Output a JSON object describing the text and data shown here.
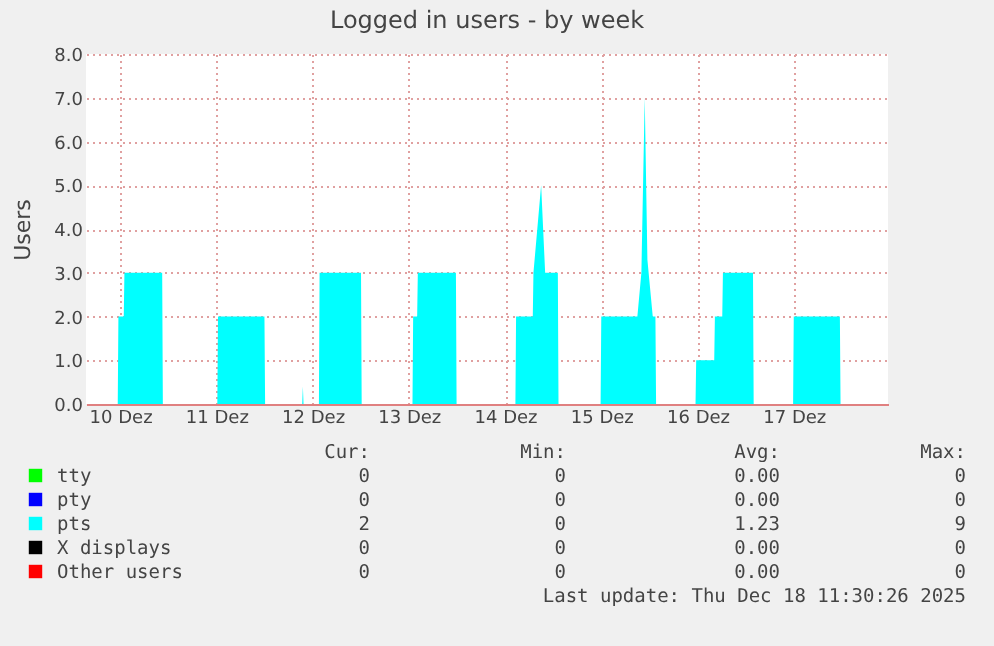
{
  "chart_data": {
    "type": "area",
    "title": "Logged in users - by week",
    "ylabel": "Users",
    "xlim": [
      "2025-12-10T03:30",
      "2025-12-18T11:30"
    ],
    "xticks": [
      {
        "value": "2025-12-10T12:00",
        "label": "10 Dez"
      },
      {
        "value": "2025-12-11T12:00",
        "label": "11 Dez"
      },
      {
        "value": "2025-12-12T12:00",
        "label": "12 Dez"
      },
      {
        "value": "2025-12-13T12:00",
        "label": "13 Dez"
      },
      {
        "value": "2025-12-14T12:00",
        "label": "14 Dez"
      },
      {
        "value": "2025-12-15T12:00",
        "label": "15 Dez"
      },
      {
        "value": "2025-12-16T12:00",
        "label": "16 Dez"
      },
      {
        "value": "2025-12-17T12:00",
        "label": "17 Dez"
      }
    ],
    "ylim": [
      0,
      8
    ],
    "yticks": [
      {
        "value": 0,
        "label": "0.0"
      },
      {
        "value": 1,
        "label": "1.0"
      },
      {
        "value": 2,
        "label": "2.0"
      },
      {
        "value": 3,
        "label": "3.0"
      },
      {
        "value": 4,
        "label": "4.0"
      },
      {
        "value": 5,
        "label": "5.0"
      },
      {
        "value": 6,
        "label": "6.0"
      },
      {
        "value": 7,
        "label": "7.0"
      },
      {
        "value": 8,
        "label": "8.0"
      }
    ],
    "grid": true,
    "legend": "bottom",
    "series": [
      {
        "name": "tty",
        "color": "#00ff00"
      },
      {
        "name": "pty",
        "color": "#0000ff"
      },
      {
        "name": "pts",
        "color": "#00ffff",
        "x": [
          "2025-12-10T03:30",
          "2025-12-10T11:25",
          "2025-12-10T11:35",
          "2025-12-10T12:55",
          "2025-12-10T13:05",
          "2025-12-10T22:30",
          "2025-12-10T22:40",
          "2025-12-11T12:15",
          "2025-12-11T12:25",
          "2025-12-12T00:00",
          "2025-12-12T00:10",
          "2025-12-12T09:25",
          "2025-12-12T09:35",
          "2025-12-12T09:45",
          "2025-12-12T13:35",
          "2025-12-12T13:45",
          "2025-12-13T00:05",
          "2025-12-13T00:15",
          "2025-12-13T12:55",
          "2025-12-13T13:05",
          "2025-12-13T14:05",
          "2025-12-13T14:15",
          "2025-12-13T23:45",
          "2025-12-13T23:55",
          "2025-12-14T14:35",
          "2025-12-14T14:45",
          "2025-12-14T18:55",
          "2025-12-14T19:05",
          "2025-12-14T21:00",
          "2025-12-14T22:00",
          "2025-12-15T01:10",
          "2025-12-15T01:20",
          "2025-12-15T11:50",
          "2025-12-15T12:00",
          "2025-12-15T21:00",
          "2025-12-15T22:00",
          "2025-12-15T22:50",
          "2025-12-15T23:30",
          "2025-12-16T00:50",
          "2025-12-16T01:30",
          "2025-12-16T01:40",
          "2025-12-16T11:30",
          "2025-12-16T11:40",
          "2025-12-16T16:10",
          "2025-12-16T16:20",
          "2025-12-16T18:10",
          "2025-12-16T18:20",
          "2025-12-17T01:50",
          "2025-12-17T02:00",
          "2025-12-17T11:50",
          "2025-12-17T12:00",
          "2025-12-17T23:30",
          "2025-12-17T23:40",
          "2025-12-18T11:30"
        ],
        "values": [
          0,
          0,
          2,
          2,
          3,
          3,
          0,
          0,
          2,
          2,
          0,
          0,
          0.4,
          0,
          0,
          3,
          3,
          0,
          0,
          2,
          2,
          3,
          3,
          0,
          0,
          2,
          2,
          3,
          5,
          3,
          3,
          0,
          0,
          2,
          2,
          3,
          7,
          3.3,
          2,
          2,
          0,
          0,
          1,
          1,
          2,
          2,
          3,
          3,
          0,
          0,
          2,
          2,
          0,
          0
        ]
      },
      {
        "name": "X displays",
        "color": "#000000"
      },
      {
        "name": "Other users",
        "color": "#ff0000"
      }
    ],
    "annotations": [
      "Cur:",
      "Min:",
      "Avg:",
      "Max:",
      "0",
      "0",
      "0.00",
      "0",
      "0",
      "0",
      "0.00",
      "0",
      "2",
      "0",
      "1.23",
      "9",
      "0",
      "0",
      "0.00",
      "0",
      "0",
      "0",
      "0.00",
      "0",
      "Last update: Thu Dec 18 11:30:26 2025"
    ]
  }
}
